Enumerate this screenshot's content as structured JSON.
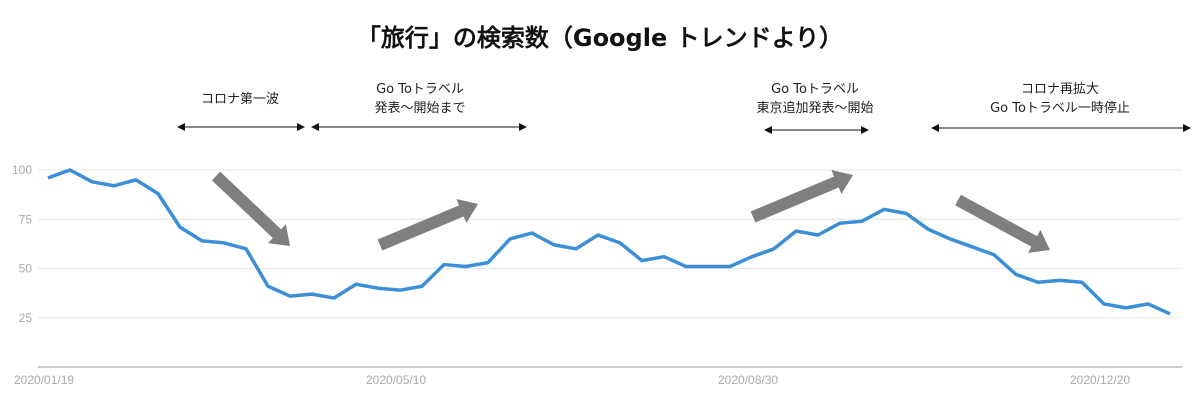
{
  "chart_data": {
    "type": "line",
    "title": "「旅行」の検索数（Google トレンドより）",
    "xlabel": "",
    "ylabel": "",
    "x_tick_labels": [
      "2020/01/19",
      "2020/05/10",
      "2020/08/30",
      "2020/12/20"
    ],
    "y_ticks": [
      25,
      50,
      75,
      100
    ],
    "ylim": [
      0,
      100
    ],
    "grid": true,
    "line_color": "#3a8fd6",
    "trend_arrow_color": "#7f7f7f",
    "x_start": "2020/01/19",
    "x_interval": "weekly",
    "values": [
      96,
      100,
      94,
      92,
      95,
      88,
      71,
      64,
      63,
      60,
      41,
      36,
      37,
      35,
      42,
      40,
      39,
      41,
      52,
      51,
      53,
      65,
      68,
      62,
      60,
      67,
      63,
      54,
      56,
      51,
      51,
      51,
      56,
      60,
      69,
      67,
      73,
      74,
      80,
      78,
      70,
      65,
      61,
      57,
      47,
      43,
      44,
      43,
      32,
      30,
      32,
      27
    ],
    "annotations": [
      {
        "lines": [
          "コロナ第一波"
        ]
      },
      {
        "lines": [
          "Go Toトラベル",
          "発表～開始まで"
        ]
      },
      {
        "lines": [
          "Go Toトラベル",
          "東京追加発表～開始"
        ]
      },
      {
        "lines": [
          "コロナ再拡大",
          "Go Toトラベル一時停止"
        ]
      }
    ]
  }
}
